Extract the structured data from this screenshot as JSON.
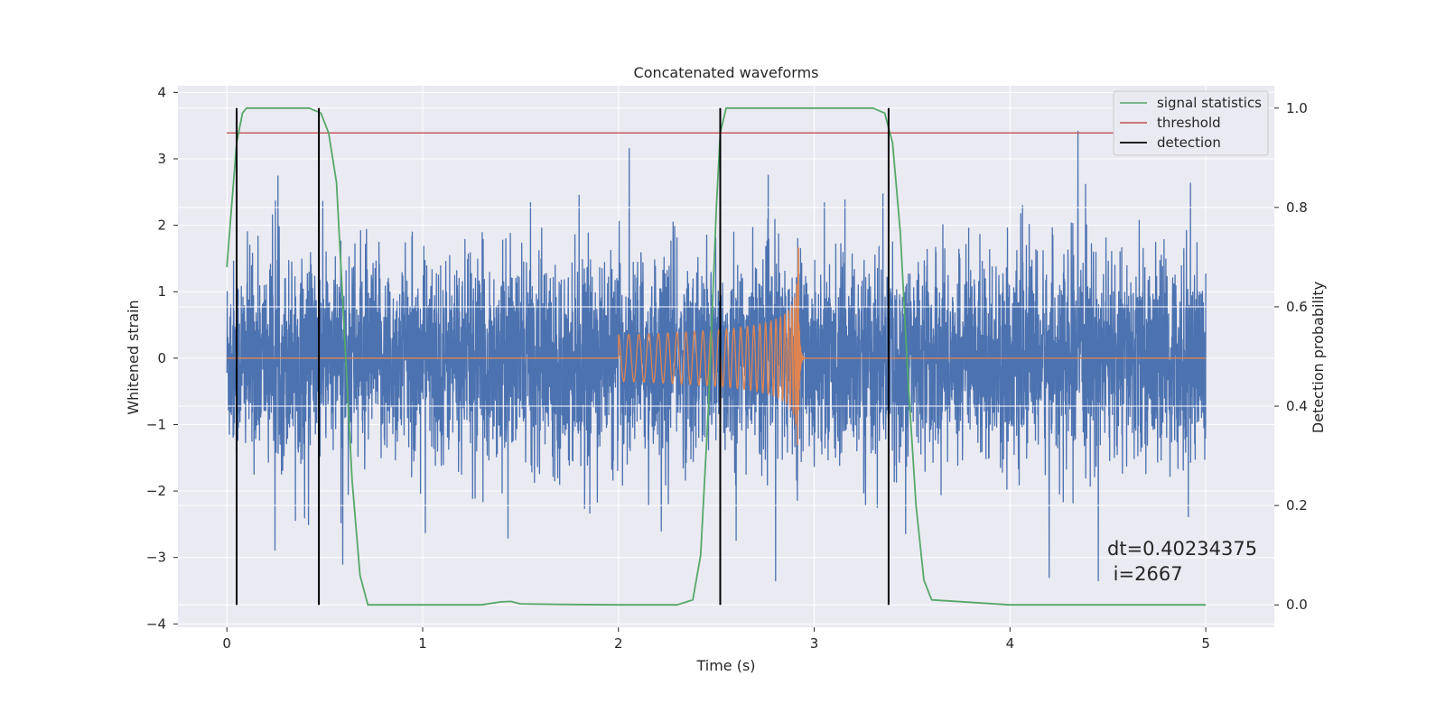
{
  "chart_data": {
    "type": "line",
    "title": "Concatenated waveforms",
    "xlabel": "Time (s)",
    "ylabel_left": "Whitened strain",
    "ylabel_right": "Detection probability",
    "xlim": [
      -0.25,
      5.35
    ],
    "ylim_left": [
      -4.05,
      4.1
    ],
    "ylim_right": [
      -0.045,
      1.045
    ],
    "xticks": [
      0,
      1,
      2,
      3,
      4,
      5
    ],
    "yticks_left": [
      -4,
      -3,
      -2,
      -1,
      0,
      1,
      2,
      3,
      4
    ],
    "yticks_right": [
      0.0,
      0.2,
      0.4,
      0.6,
      0.8,
      1.0
    ],
    "xtick_labels": [
      "0",
      "1",
      "2",
      "3",
      "4",
      "5"
    ],
    "ytick_left_labels": [
      "−4",
      "−3",
      "−2",
      "−1",
      "0",
      "1",
      "2",
      "3",
      "4"
    ],
    "ytick_right_labels": [
      "0.0",
      "0.2",
      "0.4",
      "0.6",
      "0.8",
      "1.0"
    ],
    "grid": true,
    "legend_position": "top-right",
    "colors": {
      "strain": "#4c72b0",
      "injection": "#dd8452",
      "signal_statistics": "#55a868",
      "threshold": "#c44e52",
      "detection": "#000000",
      "background": "#eaeaf2",
      "grid": "#ffffff"
    },
    "series": [
      {
        "name": "whitened strain",
        "axis": "left",
        "x_range": [
          0,
          5
        ],
        "typical_envelope": 0.75,
        "peak_range": [
          -3.35,
          3.7
        ]
      },
      {
        "name": "injected waveform",
        "axis": "left",
        "x_range": [
          2.0,
          2.92
        ],
        "start_amplitude": 0.35,
        "peak_amplitude": 1.68,
        "min_at_peak": -1.75
      },
      {
        "name": "signal statistics",
        "axis": "right",
        "x": [
          0,
          0.02,
          0.05,
          0.08,
          0.1,
          0.15,
          0.3,
          0.42,
          0.48,
          0.52,
          0.56,
          0.6,
          0.64,
          0.68,
          0.72,
          1.0,
          1.3,
          1.4,
          1.45,
          1.5,
          1.7,
          2.0,
          2.3,
          2.38,
          2.42,
          2.46,
          2.5,
          2.52,
          2.55,
          2.58,
          2.7,
          3.0,
          3.3,
          3.36,
          3.4,
          3.44,
          3.48,
          3.52,
          3.56,
          3.6,
          4.0,
          4.5,
          5.0
        ],
        "y": [
          0.68,
          0.78,
          0.93,
          0.99,
          1.0,
          1.0,
          1.0,
          1.0,
          0.99,
          0.95,
          0.85,
          0.55,
          0.25,
          0.06,
          0.0,
          0.0,
          0.0,
          0.006,
          0.007,
          0.002,
          0.001,
          0.0,
          0.0,
          0.01,
          0.1,
          0.4,
          0.8,
          0.95,
          1.0,
          1.0,
          1.0,
          1.0,
          1.0,
          0.99,
          0.93,
          0.75,
          0.45,
          0.2,
          0.05,
          0.01,
          0.0,
          0.0,
          0.0
        ]
      },
      {
        "name": "threshold",
        "axis": "right",
        "x": [
          0,
          5
        ],
        "y": [
          0.95,
          0.95
        ]
      }
    ],
    "detections": [
      0.05,
      0.47,
      2.52,
      3.38
    ],
    "detection_span": [
      0.0,
      1.0
    ],
    "legend": [
      "signal statistics",
      "threshold",
      "detection"
    ],
    "annotations": [
      "dt=0.40234375",
      " i=2667"
    ]
  }
}
